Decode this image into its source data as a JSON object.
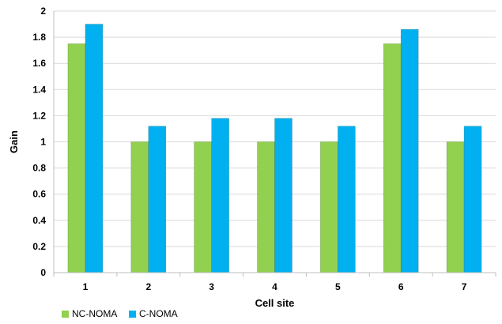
{
  "chart_data": {
    "type": "bar",
    "categories": [
      "1",
      "2",
      "3",
      "4",
      "5",
      "6",
      "7"
    ],
    "series": [
      {
        "name": "NC-NOMA",
        "color": "#92D050",
        "values": [
          1.75,
          1.0,
          1.0,
          1.0,
          1.0,
          1.75,
          1.0
        ]
      },
      {
        "name": "C-NOMA",
        "color": "#00B0F0",
        "values": [
          1.9,
          1.12,
          1.18,
          1.18,
          1.12,
          1.86,
          1.12
        ]
      }
    ],
    "xlabel": "Cell site",
    "ylabel": "Gain",
    "ylim": [
      0,
      2
    ],
    "yticks": [
      "0",
      "0.2",
      "0.4",
      "0.6",
      "0.8",
      "1",
      "1.2",
      "1.4",
      "1.6",
      "1.8",
      "2"
    ],
    "grid": true,
    "legend_position": "bottom-left"
  }
}
